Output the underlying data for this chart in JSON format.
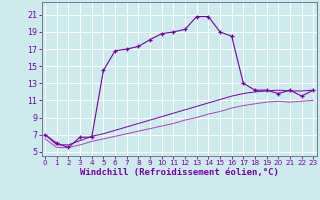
{
  "xlabel": "Windchill (Refroidissement éolien,°C)",
  "xlim": [
    0,
    23
  ],
  "ylim": [
    5,
    22
  ],
  "yticks": [
    5,
    7,
    9,
    11,
    13,
    15,
    17,
    19,
    21
  ],
  "xticks": [
    0,
    1,
    2,
    3,
    4,
    5,
    6,
    7,
    8,
    9,
    10,
    11,
    12,
    13,
    14,
    15,
    16,
    17,
    18,
    19,
    20,
    21,
    22,
    23
  ],
  "background_color": "#cdeaed",
  "grid_color": "#b8d8db",
  "line_color": "#7700aa",
  "line_color2": "#aa44bb",
  "series1_x": [
    0,
    1,
    2,
    3,
    4,
    5,
    6,
    7,
    8,
    9,
    10,
    11,
    12,
    13,
    14,
    15,
    16,
    17,
    18,
    19,
    20,
    21,
    22,
    23
  ],
  "series1_y": [
    7.0,
    6.0,
    5.5,
    6.7,
    6.7,
    14.5,
    16.8,
    17.0,
    17.3,
    18.1,
    18.8,
    19.0,
    19.3,
    20.8,
    20.8,
    19.0,
    18.5,
    13.0,
    12.2,
    12.2,
    11.8,
    12.2,
    11.5,
    12.2
  ],
  "series2_x": [
    0,
    1,
    2,
    3,
    4,
    5,
    6,
    7,
    8,
    9,
    10,
    11,
    12,
    13,
    14,
    15,
    16,
    17,
    18,
    19,
    20,
    21,
    22,
    23
  ],
  "series2_y": [
    7.0,
    5.8,
    5.8,
    6.3,
    6.8,
    7.1,
    7.5,
    7.9,
    8.3,
    8.7,
    9.1,
    9.5,
    9.9,
    10.3,
    10.7,
    11.1,
    11.5,
    11.8,
    12.0,
    12.1,
    12.2,
    12.1,
    12.1,
    12.2
  ],
  "series3_x": [
    0,
    1,
    2,
    3,
    4,
    5,
    6,
    7,
    8,
    9,
    10,
    11,
    12,
    13,
    14,
    15,
    16,
    17,
    18,
    19,
    20,
    21,
    22,
    23
  ],
  "series3_y": [
    6.5,
    5.5,
    5.5,
    5.8,
    6.2,
    6.5,
    6.8,
    7.1,
    7.4,
    7.7,
    8.0,
    8.3,
    8.7,
    9.0,
    9.4,
    9.7,
    10.1,
    10.4,
    10.6,
    10.8,
    10.9,
    10.8,
    10.9,
    11.0
  ],
  "xlabel_fontsize": 6.5,
  "tick_fontsize": 5.5
}
